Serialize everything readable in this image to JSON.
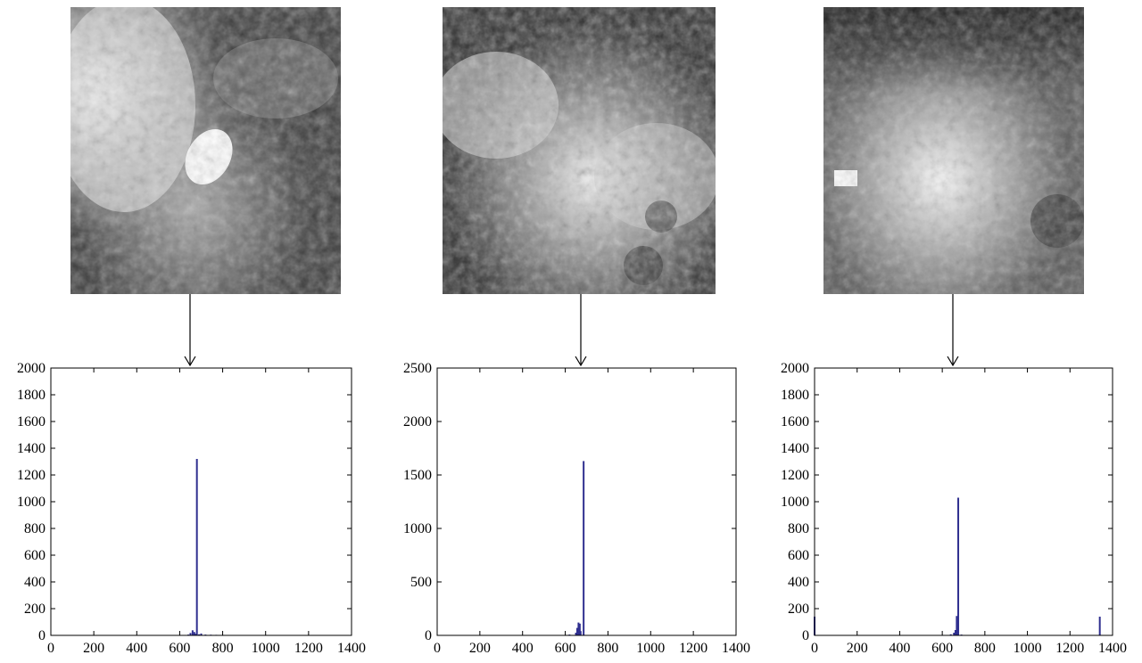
{
  "colors": {
    "bar": "#2f2f8f",
    "axis": "#000000",
    "arrow": "#000000"
  },
  "image_patches": [
    {
      "description_icon": "grayscale-tissue-patch-1"
    },
    {
      "description_icon": "grayscale-tissue-patch-2"
    },
    {
      "description_icon": "grayscale-tissue-patch-3"
    }
  ],
  "chart_data": [
    {
      "type": "bar",
      "title": "",
      "xlabel": "",
      "ylabel": "",
      "xlim": [
        0,
        1400
      ],
      "ylim": [
        0,
        2000
      ],
      "xticks": [
        0,
        200,
        400,
        600,
        800,
        1000,
        1200,
        1400
      ],
      "yticks": [
        0,
        200,
        400,
        600,
        800,
        1000,
        1200,
        1400,
        1600,
        1800,
        2000
      ],
      "grid": false,
      "series": [
        {
          "x": [
            640,
            650,
            660,
            668,
            675,
            680,
            690,
            700,
            720,
            745,
            770,
            800
          ],
          "values": [
            6,
            18,
            38,
            25,
            12,
            1320,
            8,
            14,
            6,
            5,
            4,
            3
          ]
        }
      ]
    },
    {
      "type": "bar",
      "title": "",
      "xlabel": "",
      "ylabel": "",
      "xlim": [
        0,
        1400
      ],
      "ylim": [
        0,
        2500
      ],
      "xticks": [
        0,
        200,
        400,
        600,
        800,
        1000,
        1200,
        1400
      ],
      "yticks": [
        0,
        500,
        1000,
        1500,
        2000,
        2500
      ],
      "grid": false,
      "series": [
        {
          "x": [
            620,
            650,
            656,
            662,
            668,
            672,
            686
          ],
          "values": [
            8,
            25,
            70,
            120,
            110,
            40,
            1630
          ]
        }
      ]
    },
    {
      "type": "bar",
      "title": "",
      "xlabel": "",
      "ylabel": "",
      "xlim": [
        0,
        1400
      ],
      "ylim": [
        0,
        2000
      ],
      "xticks": [
        0,
        200,
        400,
        600,
        800,
        1000,
        1200,
        1400
      ],
      "yticks": [
        0,
        200,
        400,
        600,
        800,
        1000,
        1200,
        1400,
        1600,
        1800,
        2000
      ],
      "grid": false,
      "series": [
        {
          "x": [
            0,
            640,
            655,
            662,
            668,
            675,
            690,
            1340
          ],
          "values": [
            140,
            8,
            20,
            40,
            145,
            1030,
            6,
            140
          ]
        }
      ]
    }
  ]
}
